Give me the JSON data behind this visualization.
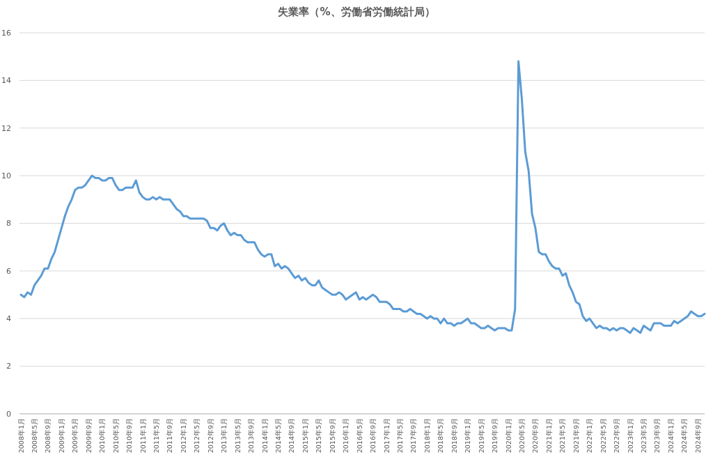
{
  "chart_data": {
    "type": "line",
    "title": "失業率（%、労働省労働統計局）",
    "categories": [
      "2008年1月",
      null,
      null,
      null,
      "2008年5月",
      null,
      null,
      null,
      "2008年9月",
      null,
      null,
      null,
      "2009年1月",
      null,
      null,
      null,
      "2009年5月",
      null,
      null,
      null,
      "2009年9月",
      null,
      null,
      null,
      "2010年1月",
      null,
      null,
      null,
      "2010年5月",
      null,
      null,
      null,
      "2010年9月",
      null,
      null,
      null,
      "2011年1月",
      null,
      null,
      null,
      "2011年5月",
      null,
      null,
      null,
      "2011年9月",
      null,
      null,
      null,
      "2012年1月",
      null,
      null,
      null,
      "2012年5月",
      null,
      null,
      null,
      "2012年9月",
      null,
      null,
      null,
      "2013年1月",
      null,
      null,
      null,
      "2013年5月",
      null,
      null,
      null,
      "2013年9月",
      null,
      null,
      null,
      "2014年1月",
      null,
      null,
      null,
      "2014年5月",
      null,
      null,
      null,
      "2014年9月",
      null,
      null,
      null,
      "2015年1月",
      null,
      null,
      null,
      "2015年5月",
      null,
      null,
      null,
      "2015年9月",
      null,
      null,
      null,
      "2016年1月",
      null,
      null,
      null,
      "2016年5月",
      null,
      null,
      null,
      "2016年9月",
      null,
      null,
      null,
      "2017年1月",
      null,
      null,
      null,
      "2017年5月",
      null,
      null,
      null,
      "2017年9月",
      null,
      null,
      null,
      "2018年1月",
      null,
      null,
      null,
      "2018年5月",
      null,
      null,
      null,
      "2018年9月",
      null,
      null,
      null,
      "2019年1月",
      null,
      null,
      null,
      "2019年5月",
      null,
      null,
      null,
      "2019年9月",
      null,
      null,
      null,
      "2020年1月",
      null,
      null,
      null,
      "2020年5月",
      null,
      null,
      null,
      "2020年9月",
      null,
      null,
      null,
      "2021年1月",
      null,
      null,
      null,
      "2021年5月",
      null,
      null,
      null,
      "2021年9月",
      null,
      null,
      null,
      "2022年1月",
      null,
      null,
      null,
      "2022年5月",
      null,
      null,
      null,
      "2022年9月",
      null,
      null,
      null,
      "2023年1月",
      null,
      null,
      null,
      "2023年5月",
      null,
      null,
      null,
      "2023年9月",
      null,
      null,
      null,
      "2024年1月",
      null,
      null,
      null,
      "2024年5月",
      null,
      null,
      null,
      "2024年9月",
      null,
      null
    ],
    "series": [
      {
        "color": "#5b9bd5",
        "values": [
          5.0,
          4.9,
          5.1,
          5.0,
          5.4,
          5.6,
          5.8,
          6.1,
          6.1,
          6.5,
          6.8,
          7.3,
          7.8,
          8.3,
          8.7,
          9.0,
          9.4,
          9.5,
          9.5,
          9.6,
          9.8,
          10.0,
          9.9,
          9.9,
          9.8,
          9.8,
          9.9,
          9.9,
          9.6,
          9.4,
          9.4,
          9.5,
          9.5,
          9.5,
          9.8,
          9.3,
          9.1,
          9.0,
          9.0,
          9.1,
          9.0,
          9.1,
          9.0,
          9.0,
          9.0,
          8.8,
          8.6,
          8.5,
          8.3,
          8.3,
          8.2,
          8.2,
          8.2,
          8.2,
          8.2,
          8.1,
          7.8,
          7.8,
          7.7,
          7.9,
          8.0,
          7.7,
          7.5,
          7.6,
          7.5,
          7.5,
          7.3,
          7.2,
          7.2,
          7.2,
          6.9,
          6.7,
          6.6,
          6.7,
          6.7,
          6.2,
          6.3,
          6.1,
          6.2,
          6.1,
          5.9,
          5.7,
          5.8,
          5.6,
          5.7,
          5.5,
          5.4,
          5.4,
          5.6,
          5.3,
          5.2,
          5.1,
          5.0,
          5.0,
          5.1,
          5.0,
          4.8,
          4.9,
          5.0,
          5.1,
          4.8,
          4.9,
          4.8,
          4.9,
          5.0,
          4.9,
          4.7,
          4.7,
          4.7,
          4.6,
          4.4,
          4.4,
          4.4,
          4.3,
          4.3,
          4.4,
          4.3,
          4.2,
          4.2,
          4.1,
          4.0,
          4.1,
          4.0,
          4.0,
          3.8,
          4.0,
          3.8,
          3.8,
          3.7,
          3.8,
          3.8,
          3.9,
          4.0,
          3.8,
          3.8,
          3.7,
          3.6,
          3.6,
          3.7,
          3.6,
          3.5,
          3.6,
          3.6,
          3.6,
          3.5,
          3.5,
          4.4,
          14.8,
          13.2,
          11.0,
          10.2,
          8.4,
          7.8,
          6.8,
          6.7,
          6.7,
          6.4,
          6.2,
          6.1,
          6.1,
          5.8,
          5.9,
          5.4,
          5.1,
          4.7,
          4.6,
          4.1,
          3.9,
          4.0,
          3.8,
          3.6,
          3.7,
          3.6,
          3.6,
          3.5,
          3.6,
          3.5,
          3.6,
          3.6,
          3.5,
          3.4,
          3.6,
          3.5,
          3.4,
          3.7,
          3.6,
          3.5,
          3.8,
          3.8,
          3.8,
          3.7,
          3.7,
          3.7,
          3.9,
          3.8,
          3.9,
          4.0,
          4.1,
          4.3,
          4.2,
          4.1,
          4.1,
          4.2
        ]
      }
    ],
    "ylim": [
      0,
      16
    ],
    "yticks": [
      0,
      2,
      4,
      6,
      8,
      10,
      12,
      14,
      16
    ],
    "grid": "y"
  }
}
